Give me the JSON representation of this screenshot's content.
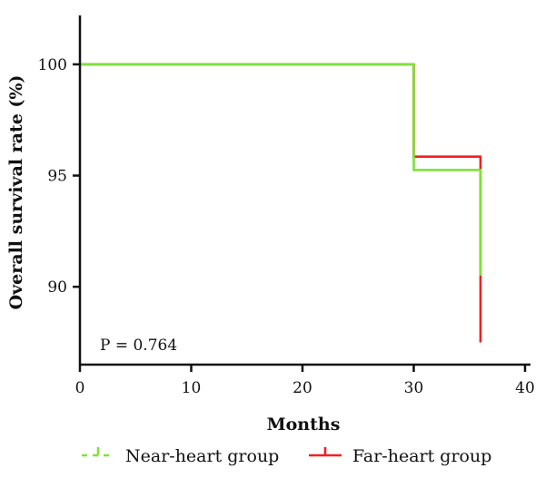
{
  "chart_data": {
    "type": "line",
    "xlabel": "Months",
    "ylabel": "Overall survival rate (%)",
    "xlim": [
      0,
      40
    ],
    "ylim": [
      86.5,
      102.2
    ],
    "x_ticks": [
      0,
      10,
      20,
      30,
      40
    ],
    "y_ticks": [
      90,
      95,
      100
    ],
    "grid": false,
    "legend_position": "bottom",
    "annotation": "P = 0.764",
    "series": [
      {
        "name": "Near-heart group",
        "color": "#7ee23a",
        "step": true,
        "x": [
          0,
          30,
          36,
          36
        ],
        "y": [
          100,
          95.25,
          95.25,
          90.5
        ]
      },
      {
        "name": "Far-heart group",
        "color": "#ee2222",
        "step": true,
        "x": [
          0,
          30,
          36,
          36
        ],
        "y": [
          100,
          95.85,
          95.85,
          87.5
        ]
      }
    ]
  }
}
